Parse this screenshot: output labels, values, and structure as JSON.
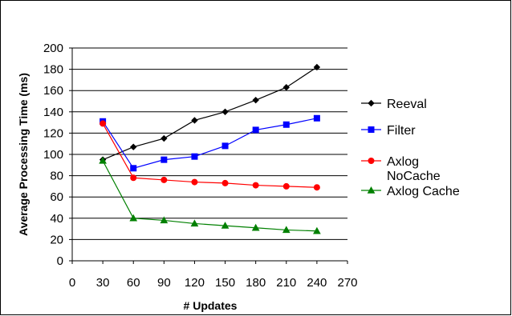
{
  "chart_data": {
    "type": "line",
    "title": "",
    "xlabel": "# Updates",
    "ylabel": "Average Processing Time (ms)",
    "xlim": [
      0,
      270
    ],
    "ylim": [
      0,
      200
    ],
    "xticks": [
      0,
      30,
      60,
      90,
      120,
      150,
      180,
      210,
      240,
      270
    ],
    "yticks": [
      0,
      20,
      40,
      60,
      80,
      100,
      120,
      140,
      160,
      180,
      200
    ],
    "grid": "horizontal",
    "legend_position": "right",
    "x": [
      30,
      60,
      90,
      120,
      150,
      180,
      210,
      240
    ],
    "series": [
      {
        "name": "Reeval",
        "values": [
          95,
          107,
          115,
          132,
          140,
          151,
          163,
          182
        ],
        "color": "#000000",
        "marker": "diamond"
      },
      {
        "name": "Filter",
        "values": [
          131,
          87,
          95,
          98,
          108,
          123,
          128,
          134
        ],
        "color": "#0000ff",
        "marker": "square"
      },
      {
        "name": "Axlog NoCache",
        "legend_lines": [
          "Axlog",
          "NoCache"
        ],
        "values": [
          129,
          78,
          76,
          74,
          73,
          71,
          70,
          69
        ],
        "color": "#ff0000",
        "marker": "circle"
      },
      {
        "name": "Axlog Cache",
        "values": [
          94,
          40,
          38,
          35,
          33,
          31,
          29,
          28
        ],
        "color": "#008000",
        "marker": "triangle"
      }
    ]
  }
}
